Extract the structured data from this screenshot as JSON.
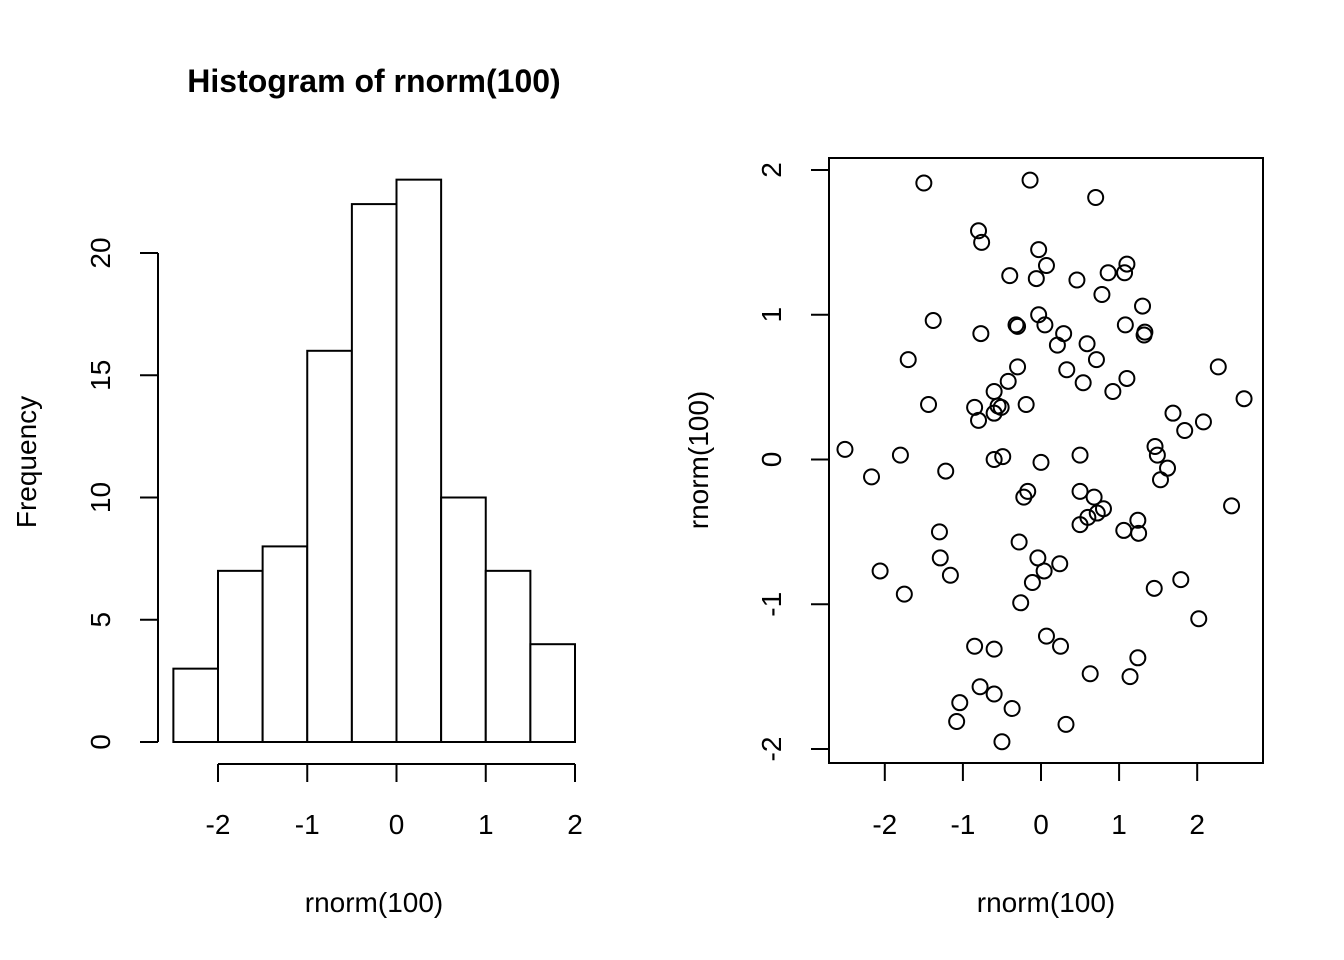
{
  "chart_data": [
    {
      "type": "bar",
      "title": "Histogram of rnorm(100)",
      "xlabel": "rnorm(100)",
      "ylabel": "Frequency",
      "bin_edges": [
        -2.5,
        -2.0,
        -1.5,
        -1.0,
        -0.5,
        0.0,
        0.5,
        1.0,
        1.5,
        2.0
      ],
      "values": [
        3,
        7,
        8,
        16,
        22,
        23,
        10,
        7,
        4
      ],
      "xticks": [
        -2,
        -1,
        0,
        1,
        2
      ],
      "xtick_labels": [
        "-2",
        "-1",
        "0",
        "1",
        "2"
      ],
      "yticks": [
        0,
        5,
        10,
        15,
        20
      ],
      "ytick_labels": [
        "0",
        "5",
        "10",
        "15",
        "20"
      ],
      "xlim": [
        -2.5,
        2.0
      ],
      "ylim": [
        0,
        23
      ],
      "grid": false
    },
    {
      "type": "scatter",
      "title": "",
      "xlabel": "rnorm(100)",
      "ylabel": "rnorm(100)",
      "xlim": [
        -2.7,
        2.8
      ],
      "ylim": [
        -2.1,
        2.1
      ],
      "xticks": [
        -2,
        -1,
        0,
        1,
        2
      ],
      "xtick_labels": [
        "-2",
        "-1",
        "0",
        "1",
        "2"
      ],
      "yticks": [
        -2,
        -1,
        0,
        1,
        2
      ],
      "ytick_labels": [
        "-2",
        "-1",
        "0",
        "1",
        "2"
      ],
      "grid": false,
      "points": [
        [
          -1.5,
          1.91
        ],
        [
          -0.14,
          1.93
        ],
        [
          0.7,
          1.81
        ],
        [
          -0.8,
          1.58
        ],
        [
          -0.76,
          1.5
        ],
        [
          -0.03,
          1.45
        ],
        [
          0.07,
          1.34
        ],
        [
          1.1,
          1.35
        ],
        [
          -0.4,
          1.27
        ],
        [
          -0.06,
          1.25
        ],
        [
          0.46,
          1.24
        ],
        [
          0.86,
          1.29
        ],
        [
          1.07,
          1.29
        ],
        [
          0.78,
          1.14
        ],
        [
          1.3,
          1.06
        ],
        [
          -1.38,
          0.96
        ],
        [
          -0.3,
          0.92
        ],
        [
          -0.32,
          0.93
        ],
        [
          0.05,
          0.93
        ],
        [
          1.08,
          0.93
        ],
        [
          -0.77,
          0.87
        ],
        [
          0.29,
          0.87
        ],
        [
          1.32,
          0.86
        ],
        [
          1.33,
          0.88
        ],
        [
          -0.03,
          1.0
        ],
        [
          0.21,
          0.79
        ],
        [
          0.59,
          0.8
        ],
        [
          -1.7,
          0.69
        ],
        [
          -0.3,
          0.64
        ],
        [
          0.33,
          0.62
        ],
        [
          0.71,
          0.69
        ],
        [
          1.1,
          0.56
        ],
        [
          2.27,
          0.64
        ],
        [
          -0.42,
          0.54
        ],
        [
          -0.6,
          0.47
        ],
        [
          0.54,
          0.53
        ],
        [
          0.92,
          0.47
        ],
        [
          -1.44,
          0.38
        ],
        [
          -0.85,
          0.36
        ],
        [
          -0.55,
          0.37
        ],
        [
          -0.51,
          0.36
        ],
        [
          -0.19,
          0.38
        ],
        [
          -0.6,
          0.32
        ],
        [
          -0.8,
          0.27
        ],
        [
          1.69,
          0.32
        ],
        [
          1.84,
          0.2
        ],
        [
          2.08,
          0.26
        ],
        [
          2.6,
          0.42
        ],
        [
          -2.51,
          0.07
        ],
        [
          -1.8,
          0.03
        ],
        [
          -0.6,
          0.0
        ],
        [
          -0.49,
          0.02
        ],
        [
          0.0,
          -0.02
        ],
        [
          0.5,
          0.03
        ],
        [
          1.46,
          0.09
        ],
        [
          1.49,
          0.03
        ],
        [
          1.62,
          -0.06
        ],
        [
          -2.17,
          -0.12
        ],
        [
          -1.22,
          -0.08
        ],
        [
          1.53,
          -0.14
        ],
        [
          -0.17,
          -0.22
        ],
        [
          -0.22,
          -0.26
        ],
        [
          0.5,
          -0.22
        ],
        [
          0.68,
          -0.26
        ],
        [
          0.8,
          -0.34
        ],
        [
          0.6,
          -0.4
        ],
        [
          0.72,
          -0.37
        ],
        [
          0.5,
          -0.45
        ],
        [
          1.06,
          -0.49
        ],
        [
          1.24,
          -0.42
        ],
        [
          1.25,
          -0.51
        ],
        [
          2.44,
          -0.32
        ],
        [
          -1.3,
          -0.5
        ],
        [
          -0.28,
          -0.57
        ],
        [
          -1.29,
          -0.68
        ],
        [
          -0.04,
          -0.68
        ],
        [
          0.04,
          -0.77
        ],
        [
          0.24,
          -0.72
        ],
        [
          -2.06,
          -0.77
        ],
        [
          -1.16,
          -0.8
        ],
        [
          -0.11,
          -0.85
        ],
        [
          -1.75,
          -0.93
        ],
        [
          -0.26,
          -0.99
        ],
        [
          1.45,
          -0.89
        ],
        [
          1.79,
          -0.83
        ],
        [
          2.02,
          -1.1
        ],
        [
          0.07,
          -1.22
        ],
        [
          0.25,
          -1.29
        ],
        [
          -0.85,
          -1.29
        ],
        [
          -0.6,
          -1.31
        ],
        [
          1.24,
          -1.37
        ],
        [
          0.63,
          -1.48
        ],
        [
          1.14,
          -1.5
        ],
        [
          -0.78,
          -1.57
        ],
        [
          -0.6,
          -1.62
        ],
        [
          -1.04,
          -1.68
        ],
        [
          -0.37,
          -1.72
        ],
        [
          -1.08,
          -1.81
        ],
        [
          0.32,
          -1.83
        ],
        [
          -0.5,
          -1.95
        ]
      ]
    }
  ]
}
